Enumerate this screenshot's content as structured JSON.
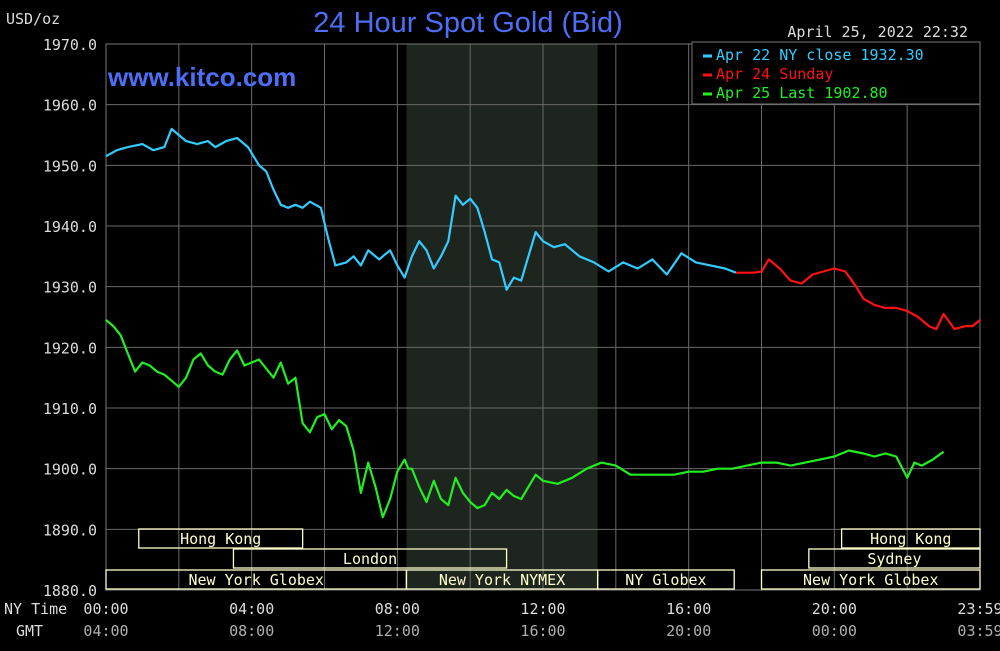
{
  "header": {
    "unit": "USD/oz",
    "title": "24 Hour Spot Gold (Bid)",
    "timestamp": "April 25, 2022 22:32",
    "watermark": "www.kitco.com"
  },
  "colors": {
    "background": "#000000",
    "grid": "#6a6a6a",
    "title": "#4f6ef7",
    "text": "#dddddd",
    "session_band": "#ffffcc",
    "nymex_shade": "#1e241e"
  },
  "chart_data": {
    "type": "line",
    "title": "24 Hour Spot Gold (Bid)",
    "ylabel": "USD/oz",
    "ylim": [
      1880,
      1970
    ],
    "yticks": [
      "1970.0",
      "1960.0",
      "1950.0",
      "1940.0",
      "1930.0",
      "1920.0",
      "1910.0",
      "1900.0",
      "1890.0",
      "1880.0"
    ],
    "xlim": [
      0,
      24
    ],
    "xticks": [
      {
        "h": 0,
        "ny": "00:00",
        "gmt": "04:00"
      },
      {
        "h": 4,
        "ny": "04:00",
        "gmt": "08:00"
      },
      {
        "h": 8,
        "ny": "08:00",
        "gmt": "12:00"
      },
      {
        "h": 12,
        "ny": "12:00",
        "gmt": "16:00"
      },
      {
        "h": 16,
        "ny": "16:00",
        "gmt": "20:00"
      },
      {
        "h": 20,
        "ny": "20:00",
        "gmt": "00:00"
      },
      {
        "h": 24,
        "ny": "23:59",
        "gmt": "03:59"
      }
    ],
    "row_labels": {
      "ny": "NY Time",
      "gmt": "GMT"
    },
    "shaded_range": [
      8.25,
      13.5
    ],
    "grid": true,
    "legend_position": "top-right",
    "series": [
      {
        "name": "Apr 22 NY close 1932.30",
        "color": "#33ccff",
        "x": [
          0,
          0.3,
          0.6,
          1.0,
          1.3,
          1.6,
          1.8,
          2.0,
          2.2,
          2.5,
          2.8,
          3.0,
          3.3,
          3.6,
          3.9,
          4.0,
          4.2,
          4.4,
          4.6,
          4.8,
          5.0,
          5.2,
          5.4,
          5.6,
          5.9,
          6.1,
          6.3,
          6.6,
          6.8,
          7.0,
          7.2,
          7.5,
          7.8,
          8.0,
          8.2,
          8.4,
          8.6,
          8.8,
          9.0,
          9.2,
          9.4,
          9.6,
          9.8,
          10.0,
          10.2,
          10.4,
          10.6,
          10.8,
          11.0,
          11.2,
          11.4,
          11.6,
          11.8,
          12.0,
          12.3,
          12.6,
          13.0,
          13.4,
          13.8,
          14.2,
          14.6,
          15.0,
          15.4,
          15.8,
          16.2,
          16.6,
          17.0,
          17.3
        ],
        "y": [
          1951.5,
          1952.5,
          1953,
          1953.5,
          1952.5,
          1953,
          1956,
          1955,
          1954,
          1953.5,
          1954,
          1953,
          1954,
          1954.5,
          1953,
          1952,
          1950,
          1949,
          1946,
          1943.5,
          1943,
          1943.5,
          1943,
          1944,
          1943,
          1938,
          1933.5,
          1934,
          1935,
          1933.5,
          1936,
          1934.5,
          1936,
          1933.5,
          1931.5,
          1935,
          1937.5,
          1936,
          1933,
          1935,
          1937.5,
          1945,
          1943.5,
          1944.5,
          1943,
          1939,
          1934.5,
          1934,
          1929.5,
          1931.5,
          1931,
          1935,
          1939,
          1937.5,
          1936.5,
          1937,
          1935,
          1934,
          1932.5,
          1934,
          1933,
          1934.5,
          1932,
          1935.5,
          1934,
          1933.5,
          1933,
          1932.3
        ]
      },
      {
        "name": "Apr 24 Sunday",
        "color": "#ff1111",
        "x": [
          17.3,
          17.8,
          18.0,
          18.2,
          18.5,
          18.8,
          19.1,
          19.4,
          19.7,
          20.0,
          20.3,
          20.6,
          20.8,
          21.1,
          21.4,
          21.7,
          22.0,
          22.3,
          22.6,
          22.8,
          23.0,
          23.3,
          23.6,
          23.8,
          24.0
        ],
        "y": [
          1932.3,
          1932.3,
          1932.5,
          1934.5,
          1933,
          1931,
          1930.5,
          1932,
          1932.5,
          1933,
          1932.5,
          1930,
          1928,
          1927,
          1926.5,
          1926.5,
          1926,
          1925,
          1923.5,
          1923,
          1925.5,
          1923,
          1923.5,
          1923.5,
          1924.5
        ]
      },
      {
        "name": "Apr 25 Last 1902.80",
        "color": "#22ee22",
        "x": [
          0,
          0.2,
          0.4,
          0.6,
          0.8,
          1.0,
          1.2,
          1.4,
          1.6,
          1.8,
          2.0,
          2.2,
          2.4,
          2.6,
          2.8,
          3.0,
          3.2,
          3.4,
          3.6,
          3.8,
          4.0,
          4.2,
          4.4,
          4.6,
          4.8,
          5.0,
          5.2,
          5.4,
          5.6,
          5.8,
          6.0,
          6.2,
          6.4,
          6.6,
          6.8,
          7.0,
          7.2,
          7.4,
          7.6,
          7.8,
          8.0,
          8.2,
          8.3,
          8.4,
          8.6,
          8.8,
          9.0,
          9.2,
          9.4,
          9.6,
          9.8,
          10.0,
          10.2,
          10.4,
          10.6,
          10.8,
          11.0,
          11.2,
          11.4,
          11.6,
          11.8,
          12.0,
          12.4,
          12.8,
          13.2,
          13.6,
          14.0,
          14.4,
          14.8,
          15.2,
          15.6,
          16.0,
          16.4,
          16.8,
          17.2,
          17.6,
          18.0,
          18.4,
          18.8,
          19.2,
          19.6,
          20.0,
          20.4,
          20.8,
          21.1,
          21.4,
          21.7,
          22.0,
          22.2,
          22.4,
          22.7,
          23.0
        ],
        "y": [
          1924.5,
          1923.5,
          1922,
          1919,
          1916,
          1917.5,
          1917,
          1916,
          1915.5,
          1914.5,
          1913.5,
          1915,
          1918,
          1919,
          1917,
          1916,
          1915.5,
          1918,
          1919.5,
          1917,
          1917.5,
          1918,
          1916.5,
          1915,
          1917.5,
          1914,
          1915,
          1907.5,
          1906,
          1908.5,
          1909,
          1906.5,
          1908,
          1907,
          1903,
          1896,
          1901,
          1897,
          1892,
          1895,
          1899.5,
          1901.5,
          1900,
          1900,
          1897,
          1894.5,
          1898,
          1895,
          1894,
          1898.5,
          1896,
          1894.5,
          1893.5,
          1894,
          1896,
          1895,
          1896.5,
          1895.5,
          1895,
          1897,
          1899,
          1898,
          1897.5,
          1898.5,
          1900,
          1901,
          1900.5,
          1899,
          1899,
          1899,
          1899,
          1899.5,
          1899.5,
          1900,
          1900,
          1900.5,
          1901,
          1901,
          1900.5,
          1901,
          1901.5,
          1902,
          1903,
          1902.5,
          1902,
          1902.5,
          1902,
          1898.5,
          1901,
          1900.5,
          1901.5,
          1902.8
        ]
      }
    ],
    "sessions": [
      {
        "label": "Hong Kong",
        "x0": 0.9,
        "x1": 5.4,
        "row": 0
      },
      {
        "label": "Hong Kong",
        "x0": 20.2,
        "x1": 24.0,
        "row": 0
      },
      {
        "label": "London",
        "x0": 3.5,
        "x1": 11.0,
        "row": 1
      },
      {
        "label": "Sydney",
        "x0": 19.3,
        "x1": 24.0,
        "row": 1
      },
      {
        "label": "New York Globex",
        "x0": 0.0,
        "x1": 8.25,
        "row": 2
      },
      {
        "label": "New York NYMEX",
        "x0": 8.25,
        "x1": 13.5,
        "row": 2
      },
      {
        "label": "NY Globex",
        "x0": 13.5,
        "x1": 17.25,
        "row": 2
      },
      {
        "label": "New York Globex",
        "x0": 18.0,
        "x1": 24.0,
        "row": 2
      }
    ]
  }
}
